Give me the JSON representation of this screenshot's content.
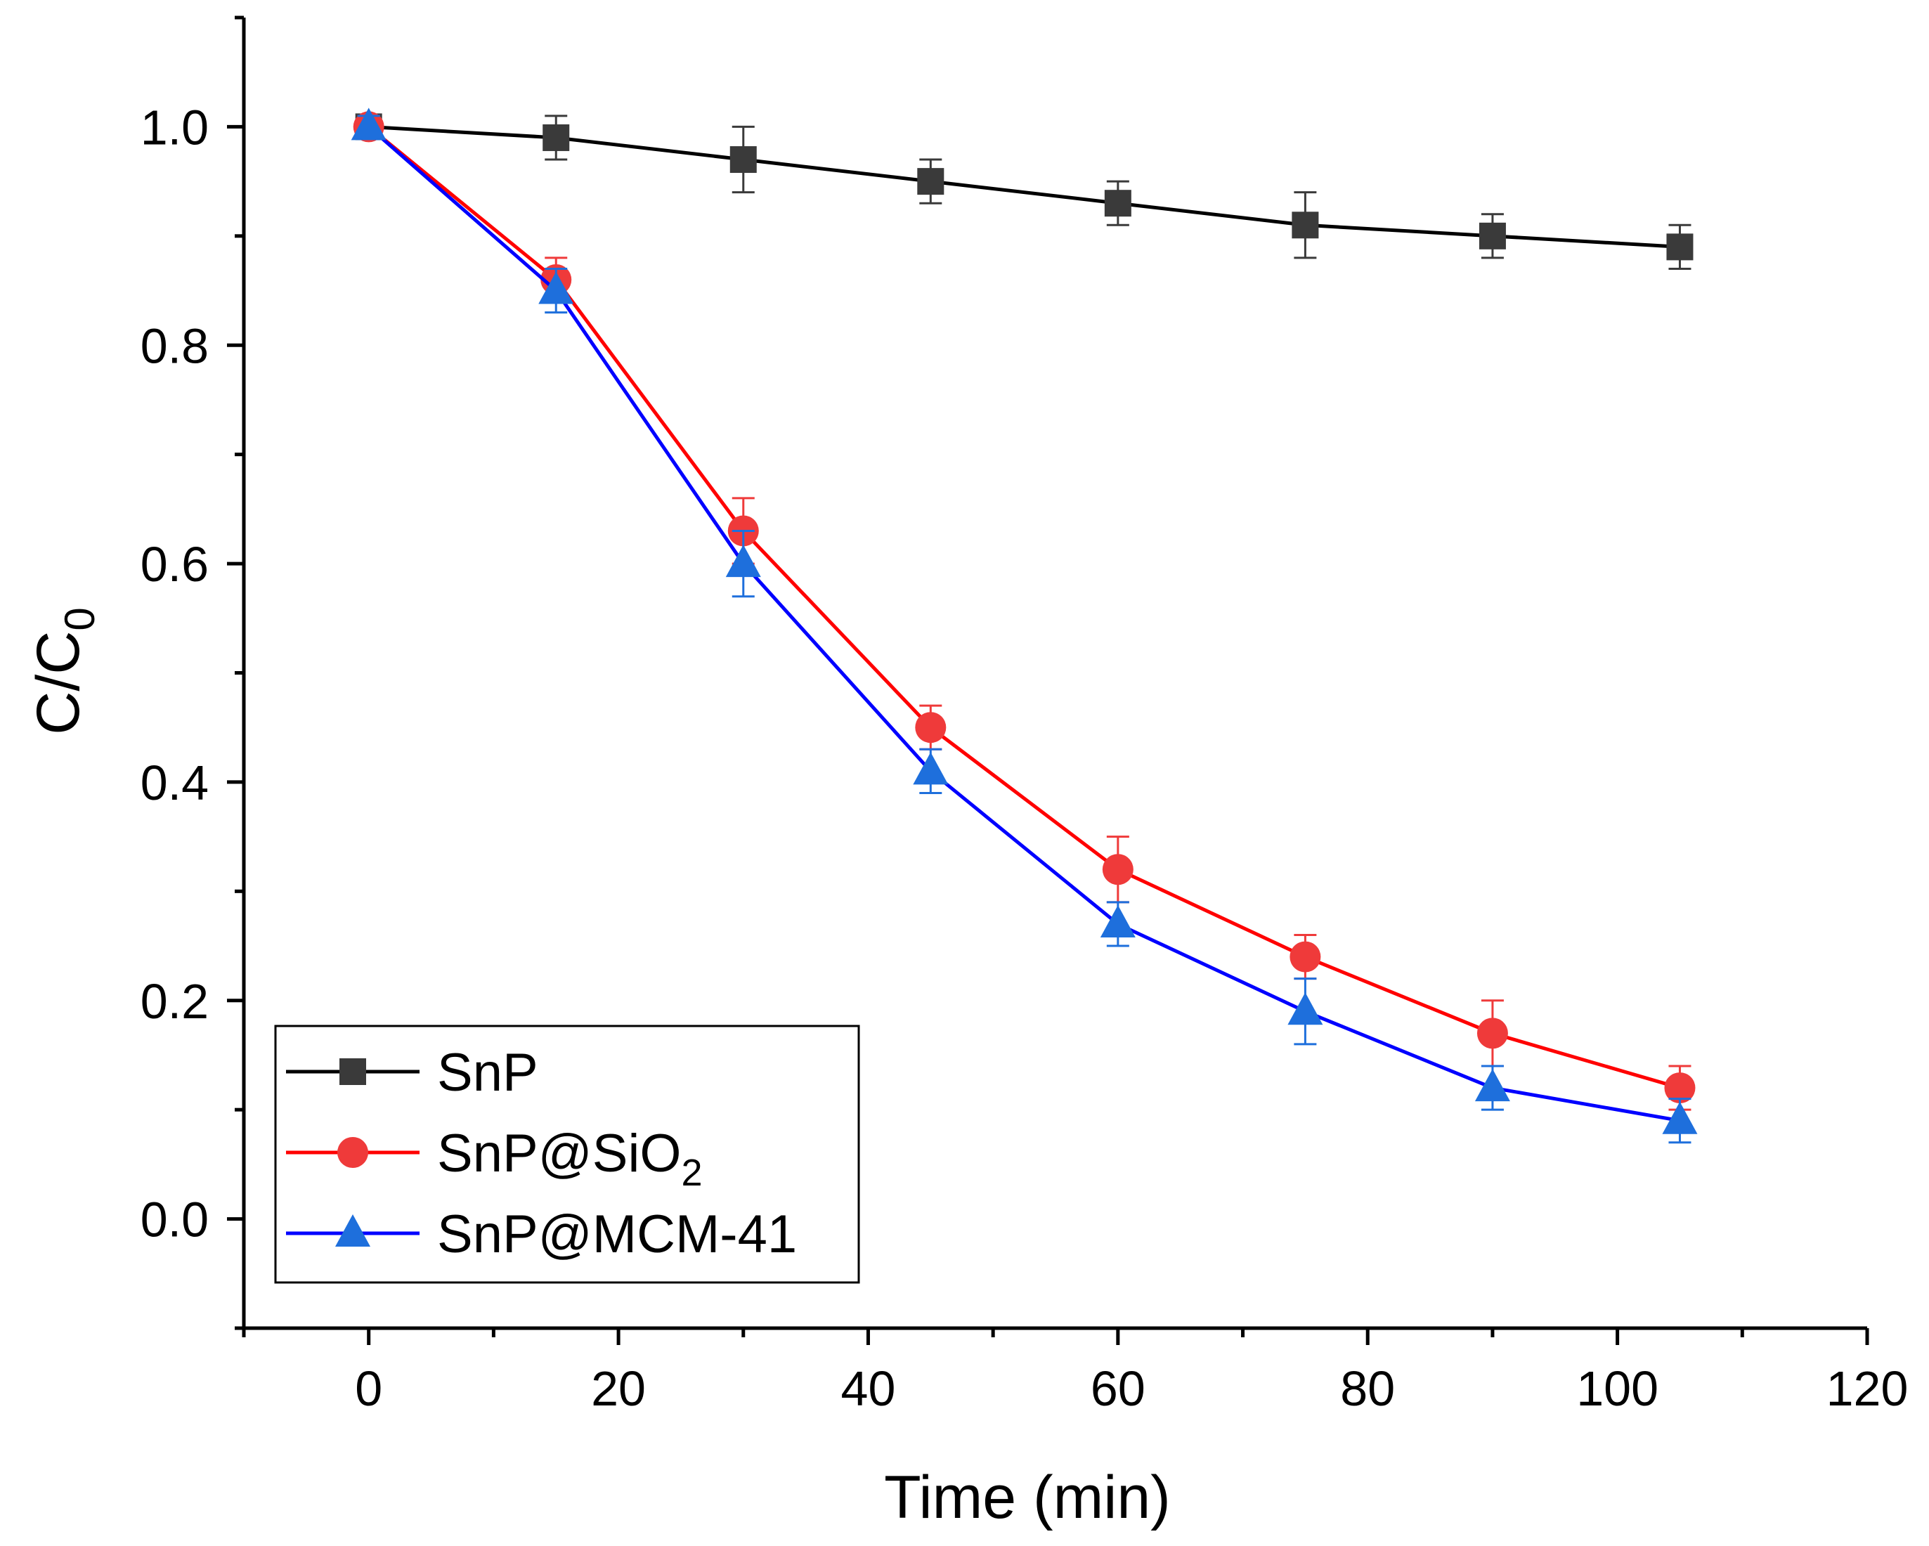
{
  "chart_data": {
    "type": "line",
    "title": "",
    "xlabel": "Time (min)",
    "ylabel": "C/C",
    "ylabel_subscript": "0",
    "xlim": [
      -10,
      120
    ],
    "ylim": [
      -0.1,
      1.1
    ],
    "x_ticks": [
      0,
      20,
      40,
      60,
      80,
      100,
      120
    ],
    "x_tick_labels": [
      "0",
      "20",
      "40",
      "60",
      "80",
      "100",
      "120"
    ],
    "x_minor_ticks": [
      -10,
      10,
      30,
      50,
      70,
      90,
      110
    ],
    "y_ticks": [
      0.0,
      0.2,
      0.4,
      0.6,
      0.8,
      1.0
    ],
    "y_tick_labels": [
      "0.0",
      "0.2",
      "0.4",
      "0.6",
      "0.8",
      "1.0"
    ],
    "y_minor_ticks": [
      -0.1,
      0.1,
      0.3,
      0.5,
      0.7,
      0.9,
      1.1
    ],
    "grid": false,
    "legend_position": "bottom-left",
    "x": [
      0,
      15,
      30,
      45,
      60,
      75,
      90,
      105
    ],
    "series": [
      {
        "name": "SnP",
        "name_main": "SnP",
        "name_subscript": "",
        "name_suffix": "",
        "marker": "square",
        "line_color": "#000000",
        "marker_color": "#3a3a3a",
        "values": [
          1.0,
          0.99,
          0.97,
          0.95,
          0.93,
          0.91,
          0.9,
          0.89
        ],
        "errors": [
          0.01,
          0.02,
          0.03,
          0.02,
          0.02,
          0.03,
          0.02,
          0.02
        ]
      },
      {
        "name": "SnP@SiO2",
        "name_main": "SnP@SiO",
        "name_subscript": "2",
        "name_suffix": "",
        "marker": "circle",
        "line_color": "#ff0000",
        "marker_color": "#ef3a3a",
        "values": [
          1.0,
          0.86,
          0.63,
          0.45,
          0.32,
          0.24,
          0.17,
          0.12
        ],
        "errors": [
          0.01,
          0.02,
          0.03,
          0.02,
          0.03,
          0.02,
          0.03,
          0.02
        ]
      },
      {
        "name": "SnP@MCM-41",
        "name_main": "SnP@MCM-41",
        "name_subscript": "",
        "name_suffix": "",
        "marker": "triangle",
        "line_color": "#0000ff",
        "marker_color": "#1e6fdc",
        "values": [
          1.0,
          0.85,
          0.6,
          0.41,
          0.27,
          0.19,
          0.12,
          0.09
        ],
        "errors": [
          0.01,
          0.02,
          0.03,
          0.02,
          0.02,
          0.03,
          0.02,
          0.02
        ]
      }
    ]
  }
}
